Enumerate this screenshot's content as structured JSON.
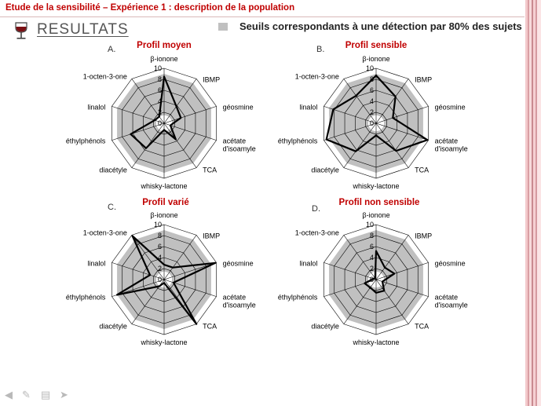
{
  "header": {
    "title": "Etude de la sensibilité – Expérience 1 : description de la population"
  },
  "section": {
    "title": "RESULTATS",
    "icon": "wine-glass-icon"
  },
  "legend": {
    "label": "Seuils correspondants à une détection par 80% des sujets",
    "swatch_color": "#c0c0c0"
  },
  "colors": {
    "title_red": "#c00000",
    "band_fill": "#c0c0c0",
    "profile_line": "#000000",
    "grid": "#000000"
  },
  "nav": {
    "icons": [
      "prev-arrow-icon",
      "pen-icon",
      "slide-menu-icon",
      "next-arrow-icon"
    ]
  },
  "chart_data": [
    {
      "type": "radar",
      "letter": "A.",
      "title": "Profil moyen",
      "axes": [
        "β-ionone",
        "IBMP",
        "géosmine",
        "acétate d'isoamyle",
        "TCA",
        "whisky-lactone",
        "diacétyle",
        "éthylphénols",
        "linalol",
        "1-octen-3-one"
      ],
      "ticks": [
        0,
        2,
        4,
        6,
        8,
        10
      ],
      "range": [
        0,
        10
      ],
      "band_outer": [
        9,
        9,
        9,
        9,
        9,
        9,
        9,
        9,
        9,
        9
      ],
      "band_inner": [
        1.5,
        1.5,
        1.5,
        1.5,
        1.5,
        1.5,
        1.5,
        1.5,
        1.5,
        1.5
      ],
      "series": [
        {
          "values": [
            8.5,
            3.8,
            3.2,
            1.2,
            3.6,
            1.2,
            5.6,
            6.4,
            1.8,
            1.5
          ]
        }
      ]
    },
    {
      "type": "radar",
      "letter": "B.",
      "title": "Profil sensible",
      "axes": [
        "β-ionone",
        "IBMP",
        "géosmine",
        "acétate d'isoamyle",
        "TCA",
        "whisky-lactone",
        "diacétyle",
        "éthylphénols",
        "linalol",
        "1-octen-3-one"
      ],
      "ticks": [
        0,
        2,
        4,
        6,
        8,
        10
      ],
      "range": [
        0,
        10
      ],
      "band_outer": [
        9,
        9,
        9,
        9,
        9,
        9,
        9,
        9,
        9,
        9
      ],
      "band_inner": [
        1.5,
        1.5,
        1.5,
        1.5,
        1.5,
        1.5,
        1.5,
        1.5,
        1.5,
        1.5
      ],
      "series": [
        {
          "values": [
            8.7,
            6.0,
            3.2,
            9.8,
            6.2,
            2.2,
            6.3,
            9.5,
            8.2,
            6.2
          ]
        }
      ]
    },
    {
      "type": "radar",
      "letter": "C.",
      "title": "Profil varié",
      "axes": [
        "β-ionone",
        "IBMP",
        "géosmine",
        "acétate d'isoamyle",
        "TCA",
        "whisky-lactone",
        "diacétyle",
        "éthylphénols",
        "linalol",
        "1-octen-3-one"
      ],
      "ticks": [
        0,
        2,
        4,
        6,
        8,
        10
      ],
      "range": [
        0,
        10
      ],
      "band_outer": [
        9,
        9,
        9,
        9,
        9,
        9,
        9,
        9,
        9,
        9
      ],
      "band_inner": [
        1.5,
        1.5,
        1.5,
        1.5,
        1.5,
        1.5,
        1.5,
        1.5,
        1.5,
        1.5
      ],
      "series": [
        {
          "values": [
            2.7,
            2.7,
            9.8,
            1.8,
            10,
            0.6,
            1.5,
            9.0,
            2.7,
            9.8
          ]
        }
      ]
    },
    {
      "type": "radar",
      "letter": "D.",
      "title": "Profil non sensible",
      "axes": [
        "β-ionone",
        "IBMP",
        "géosmine",
        "acétate d'isoamyle",
        "TCA",
        "whisky-lactone",
        "diacétyle",
        "éthylphénols",
        "linalol",
        "1-octen-3-one"
      ],
      "ticks": [
        0,
        2,
        4,
        6,
        8,
        10
      ],
      "range": [
        0,
        10
      ],
      "band_outer": [
        9,
        9,
        9,
        9,
        9,
        9,
        9,
        9,
        9,
        9
      ],
      "band_inner": [
        1.5,
        1.5,
        1.5,
        1.5,
        1.5,
        1.5,
        1.5,
        1.5,
        1.5,
        1.5
      ],
      "series": [
        {
          "values": [
            5.2,
            2.7,
            3.5,
            1.2,
            2.5,
            2.4,
            1.8,
            2.2,
            0.5,
            0.3
          ]
        }
      ]
    }
  ]
}
